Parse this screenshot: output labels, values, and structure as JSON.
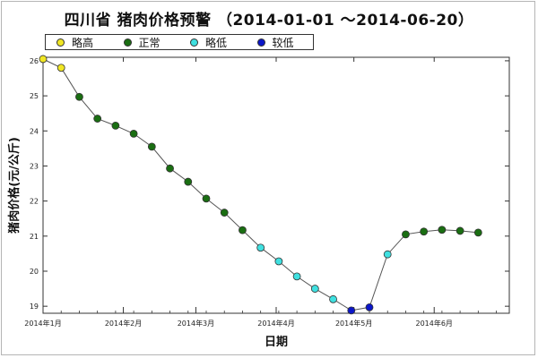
{
  "chart_data": {
    "type": "line",
    "title": "四川省 猪肉价格预警 （2014-01-01 ～2014-06-20）",
    "xlabel": "日期",
    "ylabel": "猪肉价格(元/公斤)",
    "ylim": [
      18.8,
      26.1
    ],
    "yticks": [
      19,
      20,
      21,
      22,
      23,
      24,
      25,
      26
    ],
    "xlim": [
      "2014-01-01",
      "2014-06-30"
    ],
    "xticks": [
      {
        "date": "2014-01-01",
        "label": "2014年1月"
      },
      {
        "date": "2014-02-01",
        "label": "2014年2月"
      },
      {
        "date": "2014-03-01",
        "label": "2014年3月"
      },
      {
        "date": "2014-04-01",
        "label": "2014年4月"
      },
      {
        "date": "2014-05-01",
        "label": "2014年5月"
      },
      {
        "date": "2014-06-01",
        "label": "2014年6月"
      }
    ],
    "grid": false,
    "legend_position": "top-left",
    "categories": [
      {
        "name": "略高",
        "color": "#f0e624"
      },
      {
        "name": "正常",
        "color": "#1a6e12"
      },
      {
        "name": "略低",
        "color": "#3fe0e0"
      },
      {
        "name": "较低",
        "color": "#0b16c8"
      }
    ],
    "points": [
      {
        "x": "2014-01-01",
        "y": 26.05,
        "category": 0
      },
      {
        "x": "2014-01-08",
        "y": 25.8,
        "category": 0
      },
      {
        "x": "2014-01-15",
        "y": 24.97,
        "category": 1
      },
      {
        "x": "2014-01-22",
        "y": 24.35,
        "category": 1
      },
      {
        "x": "2014-01-29",
        "y": 24.15,
        "category": 1
      },
      {
        "x": "2014-02-05",
        "y": 23.92,
        "category": 1
      },
      {
        "x": "2014-02-12",
        "y": 23.55,
        "category": 1
      },
      {
        "x": "2014-02-19",
        "y": 22.93,
        "category": 1
      },
      {
        "x": "2014-02-26",
        "y": 22.55,
        "category": 1
      },
      {
        "x": "2014-03-05",
        "y": 22.07,
        "category": 1
      },
      {
        "x": "2014-03-12",
        "y": 21.67,
        "category": 1
      },
      {
        "x": "2014-03-19",
        "y": 21.17,
        "category": 1
      },
      {
        "x": "2014-03-26",
        "y": 20.67,
        "category": 2
      },
      {
        "x": "2014-04-02",
        "y": 20.28,
        "category": 2
      },
      {
        "x": "2014-04-09",
        "y": 19.85,
        "category": 2
      },
      {
        "x": "2014-04-16",
        "y": 19.5,
        "category": 2
      },
      {
        "x": "2014-04-23",
        "y": 19.2,
        "category": 2
      },
      {
        "x": "2014-04-30",
        "y": 18.88,
        "category": 3
      },
      {
        "x": "2014-05-07",
        "y": 18.97,
        "category": 3
      },
      {
        "x": "2014-05-14",
        "y": 20.48,
        "category": 2
      },
      {
        "x": "2014-05-21",
        "y": 21.05,
        "category": 1
      },
      {
        "x": "2014-05-28",
        "y": 21.13,
        "category": 1
      },
      {
        "x": "2014-06-04",
        "y": 21.18,
        "category": 1
      },
      {
        "x": "2014-06-11",
        "y": 21.15,
        "category": 1
      },
      {
        "x": "2014-06-18",
        "y": 21.1,
        "category": 1
      }
    ]
  }
}
